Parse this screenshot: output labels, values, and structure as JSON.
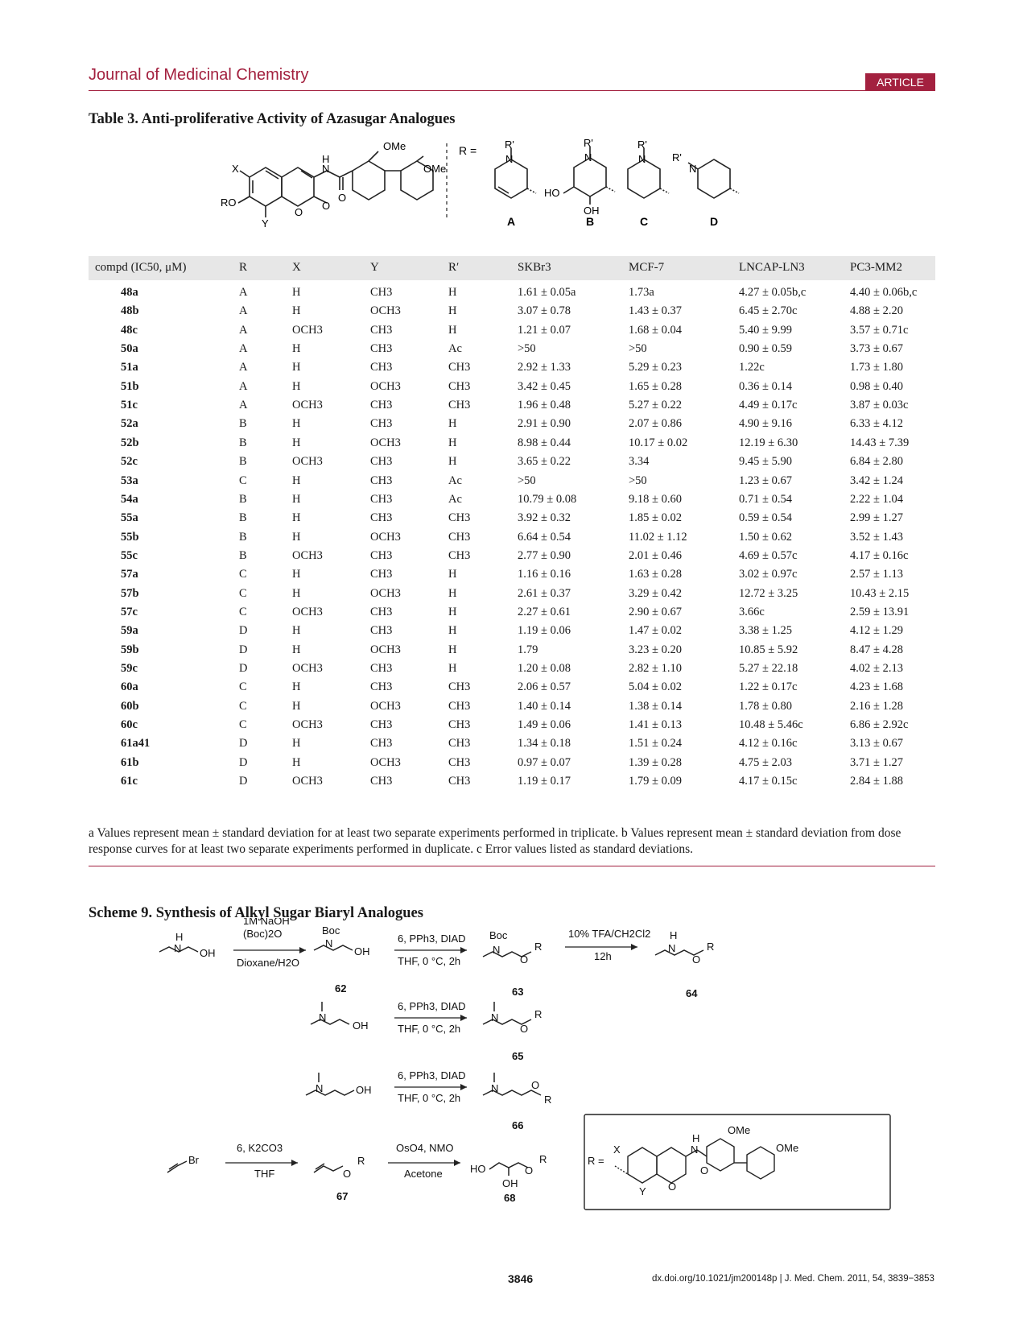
{
  "header": {
    "journal": "Journal of Medicinal Chemistry",
    "badge": "ARTICLE"
  },
  "table3": {
    "caption": "Table 3.  Anti-proliferative Activity of Azasugar Analogues",
    "structure": {
      "core_labels": {
        "OMe_top": "OMe",
        "OMe_right": "OMe",
        "X": "X",
        "RO": "RO",
        "Y": "Y",
        "H": "H",
        "N": "N",
        "O_amide": "O",
        "O_ring": "O",
        "O_lactone": "O"
      },
      "r_eq": "R =",
      "rgroups": [
        {
          "letter": "A",
          "rprime": "R'",
          "N": "N"
        },
        {
          "letter": "B",
          "rprime": "R'",
          "N": "N",
          "HO": "HO",
          "OH": "OH"
        },
        {
          "letter": "C",
          "rprime": "R'",
          "N": "N"
        },
        {
          "letter": "D",
          "rprime": "R'",
          "N": "N"
        }
      ]
    },
    "headers": {
      "comp": "compd (IC50, μM)",
      "R": "R",
      "X": "X",
      "Y": "Y",
      "Rp": "R′",
      "skbr3": "SKBr3",
      "mcf7": "MCF-7",
      "ln3": "LNCAP-LN3",
      "pc3": "PC3-MM2"
    },
    "rows": [
      {
        "comp": "48a",
        "R": "A",
        "X": "H",
        "Y": "CH3",
        "Rp": "H",
        "skbr3": "1.61 ± 0.05a",
        "mcf7": "1.73a",
        "ln3": "4.27 ± 0.05b,c",
        "pc3": "4.40 ± 0.06b,c"
      },
      {
        "comp": "48b",
        "R": "A",
        "X": "H",
        "Y": "OCH3",
        "Rp": "H",
        "skbr3": "3.07 ± 0.78",
        "mcf7": "1.43 ± 0.37",
        "ln3": "6.45 ± 2.70c",
        "pc3": "4.88 ± 2.20"
      },
      {
        "comp": "48c",
        "R": "A",
        "X": "OCH3",
        "Y": "CH3",
        "Rp": "H",
        "skbr3": "1.21 ± 0.07",
        "mcf7": "1.68 ± 0.04",
        "ln3": "5.40 ± 9.99",
        "pc3": "3.57 ± 0.71c"
      },
      {
        "comp": "50a",
        "R": "A",
        "X": "H",
        "Y": "CH3",
        "Rp": "Ac",
        "skbr3": ">50",
        "mcf7": ">50",
        "ln3": "0.90 ± 0.59",
        "pc3": "3.73 ± 0.67"
      },
      {
        "comp": "51a",
        "R": "A",
        "X": "H",
        "Y": "CH3",
        "Rp": "CH3",
        "skbr3": "2.92 ± 1.33",
        "mcf7": "5.29 ± 0.23",
        "ln3": "1.22c",
        "pc3": "1.73 ± 1.80"
      },
      {
        "comp": "51b",
        "R": "A",
        "X": "H",
        "Y": "OCH3",
        "Rp": "CH3",
        "skbr3": "3.42 ± 0.45",
        "mcf7": "1.65 ± 0.28",
        "ln3": "0.36 ± 0.14",
        "pc3": "0.98 ± 0.40"
      },
      {
        "comp": "51c",
        "R": "A",
        "X": "OCH3",
        "Y": "CH3",
        "Rp": "CH3",
        "skbr3": "1.96 ± 0.48",
        "mcf7": "5.27 ± 0.22",
        "ln3": "4.49 ± 0.17c",
        "pc3": "3.87 ± 0.03c"
      },
      {
        "comp": "52a",
        "R": "B",
        "X": "H",
        "Y": "CH3",
        "Rp": "H",
        "skbr3": "2.91 ± 0.90",
        "mcf7": "2.07 ± 0.86",
        "ln3": "4.90 ± 9.16",
        "pc3": "6.33 ± 4.12"
      },
      {
        "comp": "52b",
        "R": "B",
        "X": "H",
        "Y": "OCH3",
        "Rp": "H",
        "skbr3": "8.98 ± 0.44",
        "mcf7": "10.17 ± 0.02",
        "ln3": "12.19 ± 6.30",
        "pc3": "14.43 ± 7.39"
      },
      {
        "comp": "52c",
        "R": "B",
        "X": "OCH3",
        "Y": "CH3",
        "Rp": "H",
        "skbr3": "3.65 ± 0.22",
        "mcf7": "3.34",
        "ln3": "9.45 ± 5.90",
        "pc3": "6.84 ± 2.80"
      },
      {
        "comp": "53a",
        "R": "C",
        "X": "H",
        "Y": "CH3",
        "Rp": "Ac",
        "skbr3": ">50",
        "mcf7": ">50",
        "ln3": "1.23 ± 0.67",
        "pc3": "3.42 ± 1.24"
      },
      {
        "comp": "54a",
        "R": "B",
        "X": "H",
        "Y": "CH3",
        "Rp": "Ac",
        "skbr3": "10.79 ± 0.08",
        "mcf7": "9.18 ± 0.60",
        "ln3": "0.71 ± 0.54",
        "pc3": "2.22 ± 1.04"
      },
      {
        "comp": "55a",
        "R": "B",
        "X": "H",
        "Y": "CH3",
        "Rp": "CH3",
        "skbr3": "3.92 ± 0.32",
        "mcf7": "1.85 ± 0.02",
        "ln3": "0.59 ± 0.54",
        "pc3": "2.99 ± 1.27"
      },
      {
        "comp": "55b",
        "R": "B",
        "X": "H",
        "Y": "OCH3",
        "Rp": "CH3",
        "skbr3": "6.64 ± 0.54",
        "mcf7": "11.02 ± 1.12",
        "ln3": "1.50 ± 0.62",
        "pc3": "3.52 ± 1.43"
      },
      {
        "comp": "55c",
        "R": "B",
        "X": "OCH3",
        "Y": "CH3",
        "Rp": "CH3",
        "skbr3": "2.77 ± 0.90",
        "mcf7": "2.01 ± 0.46",
        "ln3": "4.69 ± 0.57c",
        "pc3": "4.17 ± 0.16c"
      },
      {
        "comp": "57a",
        "R": "C",
        "X": "H",
        "Y": "CH3",
        "Rp": "H",
        "skbr3": "1.16 ± 0.16",
        "mcf7": "1.63 ± 0.28",
        "ln3": "3.02 ± 0.97c",
        "pc3": "2.57 ± 1.13"
      },
      {
        "comp": "57b",
        "R": "C",
        "X": "H",
        "Y": "OCH3",
        "Rp": "H",
        "skbr3": "2.61 ± 0.37",
        "mcf7": "3.29 ± 0.42",
        "ln3": "12.72 ± 3.25",
        "pc3": "10.43 ± 2.15"
      },
      {
        "comp": "57c",
        "R": "C",
        "X": "OCH3",
        "Y": "CH3",
        "Rp": "H",
        "skbr3": "2.27 ± 0.61",
        "mcf7": "2.90 ± 0.67",
        "ln3": "3.66c",
        "pc3": "2.59 ± 13.91"
      },
      {
        "comp": "59a",
        "R": "D",
        "X": "H",
        "Y": "CH3",
        "Rp": "H",
        "skbr3": "1.19 ± 0.06",
        "mcf7": "1.47 ± 0.02",
        "ln3": "3.38 ± 1.25",
        "pc3": "4.12 ± 1.29"
      },
      {
        "comp": "59b",
        "R": "D",
        "X": "H",
        "Y": "OCH3",
        "Rp": "H",
        "skbr3": "1.79",
        "mcf7": "3.23 ± 0.20",
        "ln3": "10.85 ± 5.92",
        "pc3": "8.47 ± 4.28"
      },
      {
        "comp": "59c",
        "R": "D",
        "X": "OCH3",
        "Y": "CH3",
        "Rp": "H",
        "skbr3": "1.20 ± 0.08",
        "mcf7": "2.82 ± 1.10",
        "ln3": "5.27 ± 22.18",
        "pc3": "4.02 ± 2.13"
      },
      {
        "comp": "60a",
        "R": "C",
        "X": "H",
        "Y": "CH3",
        "Rp": "CH3",
        "skbr3": "2.06 ± 0.57",
        "mcf7": "5.04 ± 0.02",
        "ln3": "1.22 ± 0.17c",
        "pc3": "4.23 ± 1.68"
      },
      {
        "comp": "60b",
        "R": "C",
        "X": "H",
        "Y": "OCH3",
        "Rp": "CH3",
        "skbr3": "1.40 ± 0.14",
        "mcf7": "1.38 ± 0.14",
        "ln3": "1.78 ± 0.80",
        "pc3": "2.16 ± 1.28"
      },
      {
        "comp": "60c",
        "R": "C",
        "X": "OCH3",
        "Y": "CH3",
        "Rp": "CH3",
        "skbr3": "1.49 ± 0.06",
        "mcf7": "1.41 ± 0.13",
        "ln3": "10.48 ± 5.46c",
        "pc3": "6.86 ± 2.92c"
      },
      {
        "comp": "61a41",
        "R": "D",
        "X": "H",
        "Y": "CH3",
        "Rp": "CH3",
        "skbr3": "1.34 ± 0.18",
        "mcf7": "1.51 ± 0.24",
        "ln3": "4.12 ± 0.16c",
        "pc3": "3.13 ± 0.67"
      },
      {
        "comp": "61b",
        "R": "D",
        "X": "H",
        "Y": "OCH3",
        "Rp": "CH3",
        "skbr3": "0.97 ± 0.07",
        "mcf7": "1.39 ± 0.28",
        "ln3": "4.75 ± 2.03",
        "pc3": "3.71 ± 1.27"
      },
      {
        "comp": "61c",
        "R": "D",
        "X": "OCH3",
        "Y": "CH3",
        "Rp": "CH3",
        "skbr3": "1.19 ± 0.17",
        "mcf7": "1.79 ± 0.09",
        "ln3": "4.17 ± 0.15c",
        "pc3": "2.84 ± 1.88"
      }
    ],
    "footnote": "a Values represent mean ± standard deviation for at least two separate experiments performed in triplicate. b Values represent mean ± standard deviation from dose response curves for at least two separate experiments performed in duplicate. c Error values listed as standard deviations."
  },
  "scheme9": {
    "caption": "Scheme 9.  Synthesis of Alkyl Sugar Biaryl Analogues",
    "atoms": {
      "H": "H",
      "N": "N",
      "OH": "OH",
      "O": "O",
      "R": "R",
      "Boc": "Boc",
      "Br": "Br",
      "HO": "HO"
    },
    "reagents": {
      "r1_top_a": "1M NaOH",
      "r1_top_b": "(Boc)2O",
      "r1_bottom": "Dioxane/H2O",
      "mitsunobu_top": "6, PPh3, DIAD",
      "mitsunobu_bottom": "THF, 0 °C, 2h",
      "deprot_top": "10% TFA/CH2Cl2",
      "deprot_bottom": "12h",
      "alkyl_top": "6, K2CO3",
      "alkyl_bottom": "THF",
      "dihyd_top": "OsO4, NMO",
      "dihyd_bottom": "Acetone"
    },
    "compounds": [
      "62",
      "63",
      "64",
      "65",
      "66",
      "67",
      "68"
    ],
    "r_def": {
      "r_eq": "R =",
      "X": "X",
      "Y": "Y",
      "H": "H",
      "N": "N",
      "O": "O",
      "OMe1": "OMe",
      "OMe2": "OMe"
    }
  },
  "footer": {
    "page": "3846",
    "doi": "dx.doi.org/10.1021/jm200148p | J. Med. Chem. 2011, 54, 3839−3853"
  }
}
